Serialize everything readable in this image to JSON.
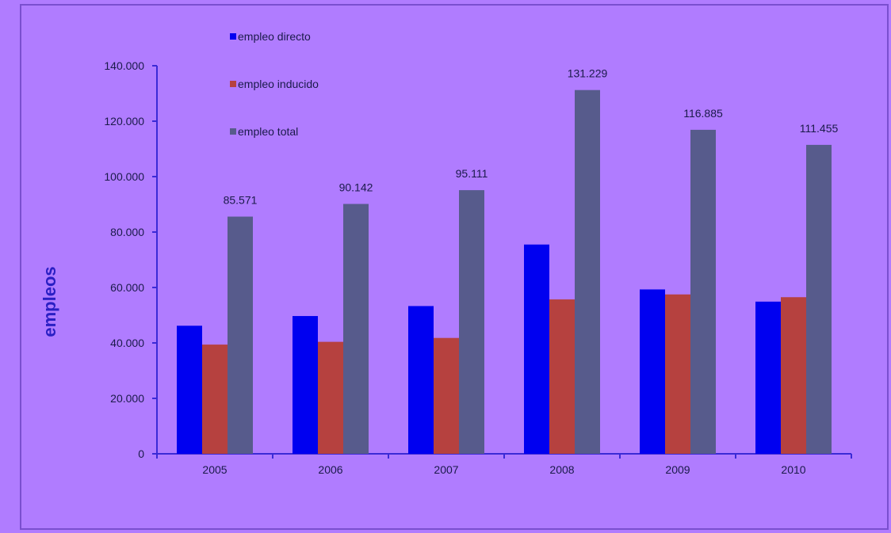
{
  "chart_data": {
    "type": "bar",
    "ylabel": "empleos",
    "xlabel": "",
    "categories": [
      "2005",
      "2006",
      "2007",
      "2008",
      "2009",
      "2010"
    ],
    "ylim": [
      0,
      140000
    ],
    "yticks": [
      0,
      20000,
      40000,
      60000,
      80000,
      100000,
      120000,
      140000
    ],
    "ytick_labels": [
      "0",
      "20.000",
      "40.000",
      "60.000",
      "80.000",
      "100.000",
      "120.000",
      "140.000"
    ],
    "grid": false,
    "legend_position": "top-left",
    "series": [
      {
        "name": "empleo directo",
        "color": "#0000f0",
        "values": [
          46200,
          49700,
          53300,
          75500,
          59300,
          54900
        ]
      },
      {
        "name": "empleo inducido",
        "color": "#b6413f",
        "values": [
          39400,
          40400,
          41800,
          55700,
          57500,
          56500
        ]
      },
      {
        "name": "empleo total",
        "color": "#575b8c",
        "values": [
          85571,
          90142,
          95111,
          131229,
          116885,
          111455
        ],
        "data_labels": [
          "85.571",
          "90.142",
          "95.111",
          "131.229",
          "116.885",
          "111.455"
        ]
      }
    ]
  },
  "colors": {
    "background": "#b07cff",
    "frame_border": "#7a4fcf",
    "axis": "#3b2ad6",
    "ylabel": "#2a1fc4",
    "text": "#1a1a4a"
  }
}
